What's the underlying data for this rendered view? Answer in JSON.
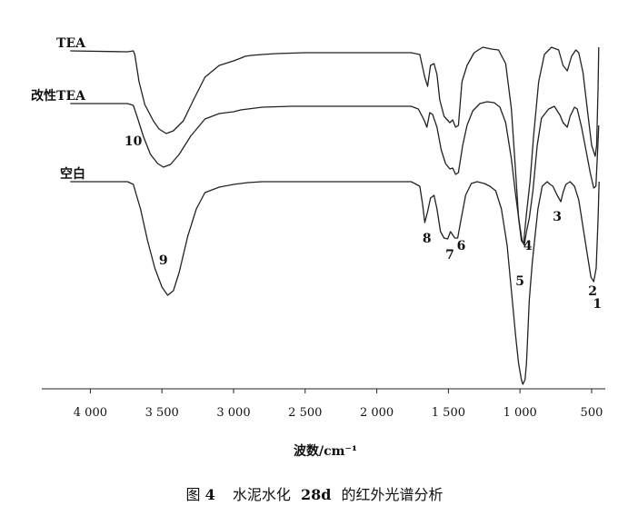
{
  "chart_data": {
    "type": "line",
    "title": "",
    "xlabel": "波数/cm⁻¹",
    "ylabel": "",
    "xlim": [
      4250,
      430
    ],
    "x_reversed": true,
    "grid": false,
    "x_ticks": [
      {
        "value": 4000,
        "label": "4 000"
      },
      {
        "value": 3500,
        "label": "3 500"
      },
      {
        "value": 3000,
        "label": "3 000"
      },
      {
        "value": 2500,
        "label": "2 500"
      },
      {
        "value": 2000,
        "label": "2 000"
      },
      {
        "value": 1500,
        "label": "1 500"
      },
      {
        "value": 1000,
        "label": "1 000"
      },
      {
        "value": 500,
        "label": "500"
      }
    ],
    "series": [
      {
        "name": "TEA",
        "color": "#222222",
        "points": [
          [
            4140,
            56
          ],
          [
            3740,
            57
          ],
          [
            3700,
            56
          ],
          [
            3690,
            60
          ],
          [
            3660,
            90
          ],
          [
            3620,
            115
          ],
          [
            3560,
            133
          ],
          [
            3520,
            142
          ],
          [
            3470,
            147
          ],
          [
            3420,
            144
          ],
          [
            3350,
            133
          ],
          [
            3280,
            110
          ],
          [
            3200,
            85
          ],
          [
            3100,
            72
          ],
          [
            3000,
            67
          ],
          [
            2950,
            64
          ],
          [
            2920,
            62
          ],
          [
            2880,
            61
          ],
          [
            2800,
            60
          ],
          [
            2700,
            59
          ],
          [
            2500,
            58
          ],
          [
            2200,
            58
          ],
          [
            1900,
            58
          ],
          [
            1760,
            58
          ],
          [
            1700,
            60
          ],
          [
            1665,
            85
          ],
          [
            1645,
            95
          ],
          [
            1625,
            72
          ],
          [
            1600,
            70
          ],
          [
            1580,
            82
          ],
          [
            1560,
            110
          ],
          [
            1530,
            128
          ],
          [
            1490,
            135
          ],
          [
            1470,
            132
          ],
          [
            1450,
            140
          ],
          [
            1430,
            138
          ],
          [
            1405,
            90
          ],
          [
            1370,
            72
          ],
          [
            1320,
            58
          ],
          [
            1260,
            52
          ],
          [
            1200,
            54
          ],
          [
            1150,
            55
          ],
          [
            1100,
            70
          ],
          [
            1060,
            120
          ],
          [
            1030,
            190
          ],
          [
            1010,
            240
          ],
          [
            990,
            265
          ],
          [
            975,
            268
          ],
          [
            955,
            235
          ],
          [
            930,
            200
          ],
          [
            905,
            150
          ],
          [
            870,
            90
          ],
          [
            830,
            60
          ],
          [
            780,
            52
          ],
          [
            730,
            55
          ],
          [
            700,
            72
          ],
          [
            670,
            78
          ],
          [
            640,
            62
          ],
          [
            610,
            55
          ],
          [
            590,
            58
          ],
          [
            560,
            80
          ],
          [
            530,
            120
          ],
          [
            500,
            160
          ],
          [
            475,
            172
          ],
          [
            465,
            160
          ],
          [
            455,
            95
          ],
          [
            450,
            52
          ]
        ]
      },
      {
        "name": "改性TEA",
        "color": "#222222",
        "points": [
          [
            4140,
            114
          ],
          [
            3740,
            114
          ],
          [
            3700,
            116
          ],
          [
            3670,
            130
          ],
          [
            3630,
            150
          ],
          [
            3580,
            170
          ],
          [
            3530,
            180
          ],
          [
            3490,
            184
          ],
          [
            3440,
            181
          ],
          [
            3380,
            170
          ],
          [
            3300,
            150
          ],
          [
            3200,
            131
          ],
          [
            3100,
            125
          ],
          [
            3000,
            123
          ],
          [
            2950,
            121
          ],
          [
            2900,
            120
          ],
          [
            2800,
            118
          ],
          [
            2600,
            117
          ],
          [
            2300,
            117
          ],
          [
            2000,
            117
          ],
          [
            1760,
            117
          ],
          [
            1710,
            120
          ],
          [
            1670,
            132
          ],
          [
            1650,
            140
          ],
          [
            1630,
            124
          ],
          [
            1610,
            126
          ],
          [
            1580,
            140
          ],
          [
            1550,
            165
          ],
          [
            1520,
            180
          ],
          [
            1490,
            186
          ],
          [
            1470,
            185
          ],
          [
            1450,
            192
          ],
          [
            1430,
            190
          ],
          [
            1400,
            160
          ],
          [
            1370,
            138
          ],
          [
            1330,
            122
          ],
          [
            1280,
            114
          ],
          [
            1230,
            112
          ],
          [
            1180,
            113
          ],
          [
            1140,
            118
          ],
          [
            1100,
            135
          ],
          [
            1060,
            175
          ],
          [
            1030,
            215
          ],
          [
            1005,
            245
          ],
          [
            985,
            265
          ],
          [
            970,
            270
          ],
          [
            955,
            255
          ],
          [
            935,
            240
          ],
          [
            910,
            210
          ],
          [
            880,
            160
          ],
          [
            850,
            130
          ],
          [
            800,
            120
          ],
          [
            760,
            117
          ],
          [
            720,
            127
          ],
          [
            700,
            135
          ],
          [
            670,
            140
          ],
          [
            650,
            128
          ],
          [
            620,
            118
          ],
          [
            600,
            120
          ],
          [
            570,
            140
          ],
          [
            540,
            165
          ],
          [
            510,
            190
          ],
          [
            485,
            207
          ],
          [
            470,
            205
          ],
          [
            458,
            165
          ],
          [
            450,
            138
          ]
        ]
      },
      {
        "name": "空白",
        "color": "#222222",
        "points": [
          [
            4140,
            200
          ],
          [
            3740,
            200
          ],
          [
            3700,
            203
          ],
          [
            3650,
            230
          ],
          [
            3600,
            265
          ],
          [
            3550,
            295
          ],
          [
            3500,
            316
          ],
          [
            3460,
            325
          ],
          [
            3420,
            320
          ],
          [
            3380,
            300
          ],
          [
            3320,
            260
          ],
          [
            3260,
            230
          ],
          [
            3200,
            212
          ],
          [
            3100,
            206
          ],
          [
            3000,
            203
          ],
          [
            2950,
            202
          ],
          [
            2900,
            201
          ],
          [
            2800,
            200
          ],
          [
            2600,
            200
          ],
          [
            2300,
            200
          ],
          [
            2000,
            200
          ],
          [
            1760,
            200
          ],
          [
            1700,
            205
          ],
          [
            1680,
            225
          ],
          [
            1665,
            245
          ],
          [
            1645,
            233
          ],
          [
            1625,
            218
          ],
          [
            1600,
            215
          ],
          [
            1580,
            230
          ],
          [
            1555,
            255
          ],
          [
            1530,
            262
          ],
          [
            1505,
            263
          ],
          [
            1485,
            255
          ],
          [
            1455,
            262
          ],
          [
            1435,
            262
          ],
          [
            1410,
            240
          ],
          [
            1380,
            215
          ],
          [
            1340,
            202
          ],
          [
            1300,
            200
          ],
          [
            1250,
            202
          ],
          [
            1210,
            205
          ],
          [
            1170,
            210
          ],
          [
            1130,
            230
          ],
          [
            1090,
            270
          ],
          [
            1060,
            320
          ],
          [
            1030,
            370
          ],
          [
            1010,
            400
          ],
          [
            990,
            418
          ],
          [
            980,
            423
          ],
          [
            965,
            418
          ],
          [
            955,
            400
          ],
          [
            935,
            330
          ],
          [
            915,
            290
          ],
          [
            895,
            260
          ],
          [
            875,
            230
          ],
          [
            845,
            205
          ],
          [
            810,
            200
          ],
          [
            790,
            203
          ],
          [
            770,
            205
          ],
          [
            740,
            215
          ],
          [
            715,
            222
          ],
          [
            700,
            212
          ],
          [
            680,
            203
          ],
          [
            650,
            200
          ],
          [
            620,
            205
          ],
          [
            590,
            220
          ],
          [
            560,
            250
          ],
          [
            530,
            280
          ],
          [
            505,
            305
          ],
          [
            485,
            310
          ],
          [
            468,
            295
          ],
          [
            455,
            240
          ],
          [
            448,
            200
          ]
        ]
      }
    ],
    "series_labels": [
      "TEA",
      "改性TEA",
      "空白"
    ],
    "peak_labels": [
      {
        "text": "1",
        "x": 460
      },
      {
        "text": "2",
        "x": 480
      },
      {
        "text": "3",
        "x": 715
      },
      {
        "text": "4",
        "x": 895
      },
      {
        "text": "5",
        "x": 1000
      },
      {
        "text": "6",
        "x": 1410
      },
      {
        "text": "7",
        "x": 1490
      },
      {
        "text": "8",
        "x": 1650
      },
      {
        "text": "9",
        "x": 3490
      },
      {
        "text": "10",
        "x": 3700
      }
    ]
  },
  "caption": {
    "prefix": "图",
    "number": "4",
    "text_part1": "水泥水化",
    "bold_part": "28d",
    "text_part2": "的红外光谱分析"
  }
}
